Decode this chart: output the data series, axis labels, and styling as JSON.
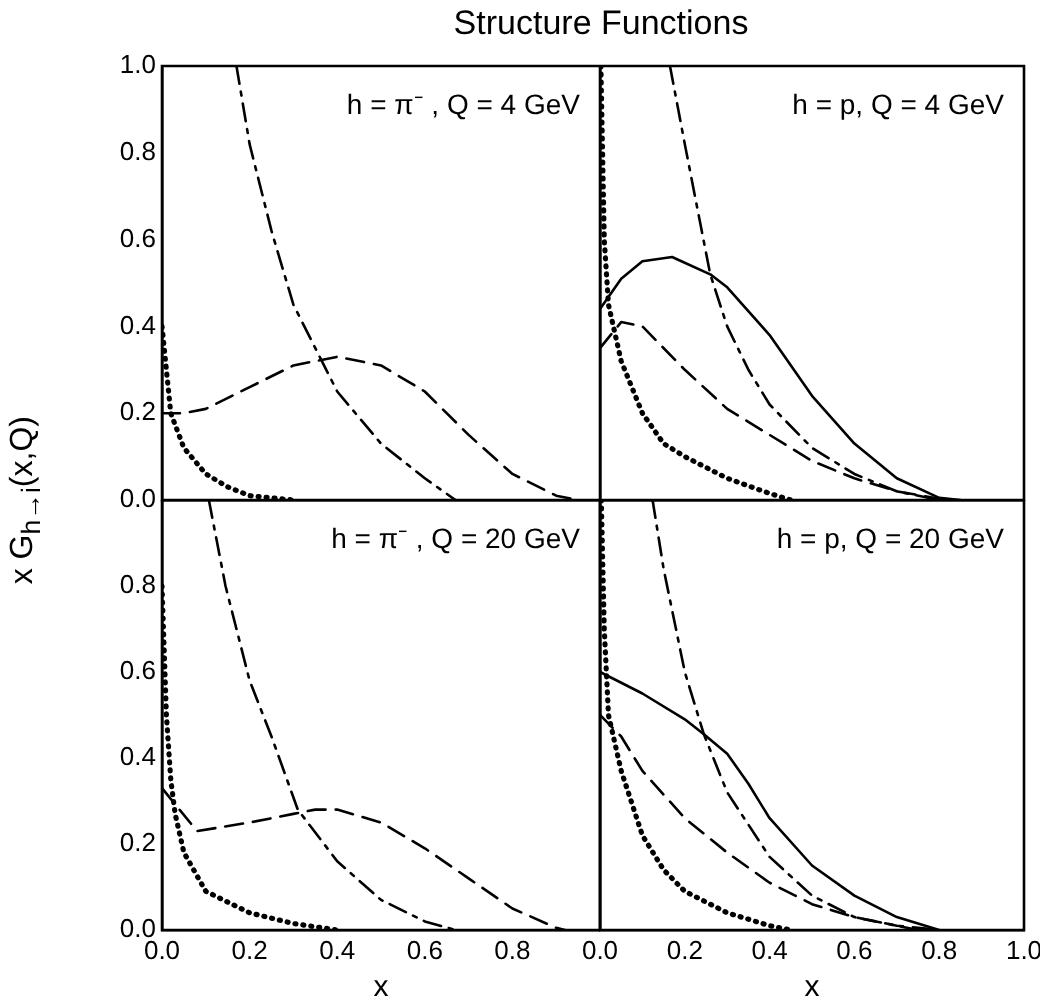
{
  "chart_data": [
    {
      "type": "line",
      "title": "Structure Functions",
      "ylabel": "x G$_{h→i}$(x,Q)",
      "annotations": [
        "h = π⁻ , Q = 4 GeV"
      ],
      "xlim": [
        0,
        1
      ],
      "ylim": [
        0,
        1
      ],
      "tick_labels": "y",
      "grid": false,
      "legend": false,
      "yticks": [
        {
          "value": 0,
          "label": "0.0"
        },
        {
          "value": 0.2,
          "label": "0.2"
        },
        {
          "value": 0.4,
          "label": "0.4"
        },
        {
          "value": 0.6,
          "label": "0.6"
        },
        {
          "value": 0.8,
          "label": "0.8"
        },
        {
          "value": 1,
          "label": "1.0"
        }
      ],
      "series": [
        {
          "color": "#000000",
          "line_style": "dashed",
          "x": [
            0,
            0.05,
            0.1,
            0.2,
            0.3,
            0.35,
            0.4,
            0.5,
            0.6,
            0.7,
            0.8,
            0.9,
            0.95
          ],
          "values": [
            0.2,
            0.2,
            0.21,
            0.26,
            0.31,
            0.32,
            0.33,
            0.31,
            0.25,
            0.15,
            0.06,
            0.01,
            0
          ]
        },
        {
          "color": "#000000",
          "line_style": "dashdot",
          "x": [
            0.17,
            0.2,
            0.25,
            0.3,
            0.36,
            0.4,
            0.5,
            0.6,
            0.67
          ],
          "values": [
            1,
            0.82,
            0.62,
            0.45,
            0.33,
            0.25,
            0.13,
            0.05,
            0
          ]
        },
        {
          "color": "#000000",
          "line_style": "dotted",
          "x": [
            0,
            0.01,
            0.02,
            0.05,
            0.1,
            0.15,
            0.2,
            0.3
          ],
          "values": [
            0.4,
            0.3,
            0.2,
            0.12,
            0.06,
            0.03,
            0.01,
            0
          ]
        }
      ]
    },
    {
      "type": "line",
      "annotations": [
        "h = p, Q = 4 GeV"
      ],
      "xlim": [
        0,
        1
      ],
      "ylim": [
        0,
        1
      ],
      "tick_labels": false,
      "grid": false,
      "legend": false,
      "series": [
        {
          "color": "#000000",
          "line_style": "solid",
          "x": [
            0,
            0.05,
            0.1,
            0.17,
            0.26,
            0.3,
            0.4,
            0.5,
            0.6,
            0.7,
            0.8,
            0.85
          ],
          "values": [
            0.44,
            0.51,
            0.55,
            0.56,
            0.52,
            0.49,
            0.38,
            0.24,
            0.13,
            0.05,
            0.005,
            0
          ]
        },
        {
          "color": "#000000",
          "line_style": "dashed",
          "x": [
            0,
            0.05,
            0.1,
            0.2,
            0.3,
            0.4,
            0.5,
            0.6,
            0.7,
            0.8,
            0.83
          ],
          "values": [
            0.35,
            0.41,
            0.4,
            0.3,
            0.21,
            0.15,
            0.09,
            0.05,
            0.02,
            0.003,
            0
          ]
        },
        {
          "color": "#000000",
          "line_style": "dashdot",
          "x": [
            0.165,
            0.2,
            0.26,
            0.3,
            0.35,
            0.4,
            0.5,
            0.6,
            0.7,
            0.8
          ],
          "values": [
            1,
            0.82,
            0.52,
            0.4,
            0.3,
            0.22,
            0.12,
            0.06,
            0.02,
            0
          ]
        },
        {
          "color": "#000000",
          "line_style": "dotted",
          "x": [
            0.002,
            0.01,
            0.02,
            0.05,
            0.1,
            0.15,
            0.2,
            0.3,
            0.4,
            0.45
          ],
          "values": [
            1,
            0.6,
            0.45,
            0.32,
            0.2,
            0.13,
            0.1,
            0.05,
            0.015,
            0
          ]
        }
      ]
    },
    {
      "type": "line",
      "xlabel": "x",
      "annotations": [
        "h = π⁻ , Q = 20 GeV"
      ],
      "xlim": [
        0,
        1
      ],
      "ylim": [
        0,
        1
      ],
      "grid": false,
      "legend": false,
      "xticks": [
        {
          "value": 0,
          "label": "0.0"
        },
        {
          "value": 0.2,
          "label": "0.2"
        },
        {
          "value": 0.4,
          "label": "0.4"
        },
        {
          "value": 0.6,
          "label": "0.6"
        },
        {
          "value": 0.8,
          "label": "0.8"
        }
      ],
      "yticks": [
        {
          "value": 0,
          "label": "0.0"
        },
        {
          "value": 0.2,
          "label": "0.2"
        },
        {
          "value": 0.4,
          "label": "0.4"
        },
        {
          "value": 0.6,
          "label": "0.6"
        },
        {
          "value": 0.8,
          "label": "0.8"
        }
      ],
      "series": [
        {
          "color": "#000000",
          "line_style": "dashed",
          "x": [
            0,
            0.08,
            0.2,
            0.3,
            0.35,
            0.4,
            0.5,
            0.6,
            0.7,
            0.8,
            0.9,
            0.92
          ],
          "values": [
            0.33,
            0.23,
            0.25,
            0.27,
            0.28,
            0.28,
            0.25,
            0.19,
            0.12,
            0.05,
            0.005,
            0
          ]
        },
        {
          "color": "#000000",
          "line_style": "dashdot",
          "x": [
            0.107,
            0.145,
            0.2,
            0.25,
            0.31,
            0.4,
            0.5,
            0.6,
            0.67
          ],
          "values": [
            1,
            0.8,
            0.58,
            0.45,
            0.28,
            0.16,
            0.07,
            0.02,
            0
          ]
        },
        {
          "color": "#000000",
          "line_style": "dotted",
          "x": [
            0,
            0.01,
            0.02,
            0.03,
            0.05,
            0.1,
            0.2,
            0.3,
            0.4
          ],
          "values": [
            0.8,
            0.5,
            0.35,
            0.27,
            0.18,
            0.09,
            0.04,
            0.015,
            0
          ]
        }
      ]
    },
    {
      "type": "line",
      "xlabel": "x",
      "annotations": [
        "h = p, Q = 20 GeV"
      ],
      "xlim": [
        0,
        1
      ],
      "ylim": [
        0,
        1
      ],
      "tick_labels": "x",
      "grid": false,
      "legend": false,
      "xticks": [
        {
          "value": 0,
          "label": "0.0"
        },
        {
          "value": 0.2,
          "label": "0.2"
        },
        {
          "value": 0.4,
          "label": "0.4"
        },
        {
          "value": 0.6,
          "label": "0.6"
        },
        {
          "value": 0.8,
          "label": "0.8"
        },
        {
          "value": 1,
          "label": "1.0"
        }
      ],
      "series": [
        {
          "color": "#000000",
          "line_style": "solid",
          "x": [
            0,
            0.1,
            0.2,
            0.245,
            0.3,
            0.35,
            0.4,
            0.5,
            0.6,
            0.7,
            0.8
          ],
          "values": [
            0.6,
            0.55,
            0.49,
            0.455,
            0.41,
            0.34,
            0.26,
            0.15,
            0.08,
            0.03,
            0
          ]
        },
        {
          "color": "#000000",
          "line_style": "dashed",
          "x": [
            0,
            0.05,
            0.1,
            0.2,
            0.3,
            0.4,
            0.5,
            0.6,
            0.7,
            0.8
          ],
          "values": [
            0.5,
            0.45,
            0.37,
            0.26,
            0.18,
            0.11,
            0.06,
            0.03,
            0.01,
            0
          ]
        },
        {
          "color": "#000000",
          "line_style": "dashdot",
          "x": [
            0.124,
            0.15,
            0.2,
            0.245,
            0.3,
            0.4,
            0.5,
            0.6,
            0.7,
            0.75
          ],
          "values": [
            1,
            0.84,
            0.6,
            0.455,
            0.32,
            0.17,
            0.08,
            0.03,
            0.01,
            0
          ]
        },
        {
          "color": "#000000",
          "line_style": "dotted",
          "x": [
            0.003,
            0.01,
            0.02,
            0.05,
            0.1,
            0.15,
            0.2,
            0.3,
            0.4,
            0.45
          ],
          "values": [
            1,
            0.7,
            0.5,
            0.37,
            0.22,
            0.14,
            0.09,
            0.04,
            0.01,
            0
          ]
        }
      ]
    }
  ]
}
